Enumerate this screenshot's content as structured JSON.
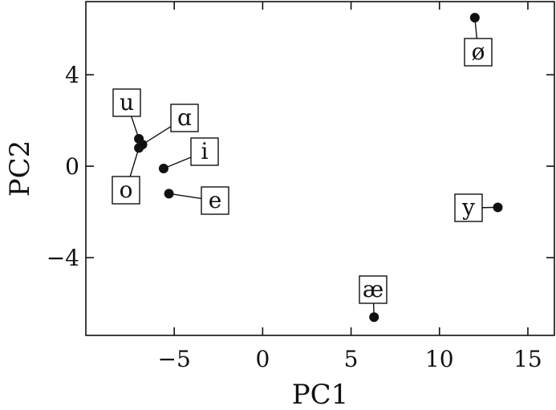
{
  "chart_data": {
    "type": "scatter",
    "title": "",
    "xlabel": "PC1",
    "ylabel": "PC2",
    "xlim": [
      -10,
      16.5
    ],
    "ylim": [
      -7.4,
      7.2
    ],
    "xticks": [
      -5,
      0,
      5,
      10,
      15
    ],
    "yticks": [
      -4,
      0,
      4
    ],
    "xtick_labels": [
      "−5",
      "0",
      "5",
      "10",
      "15"
    ],
    "ytick_labels": [
      "−4",
      "0",
      "4"
    ],
    "grid": false,
    "points": [
      {
        "label": "u",
        "x": -7.0,
        "y": 1.2
      },
      {
        "label": "ɑ",
        "x": -6.8,
        "y": 0.95
      },
      {
        "label": "o",
        "x": -7.0,
        "y": 0.8
      },
      {
        "label": "i",
        "x": -5.6,
        "y": -0.1
      },
      {
        "label": "e",
        "x": -5.3,
        "y": -1.2
      },
      {
        "label": "ø",
        "x": 12.0,
        "y": 6.5
      },
      {
        "label": "y",
        "x": 13.3,
        "y": -1.8
      },
      {
        "label": "æ",
        "x": 6.3,
        "y": -6.6
      }
    ]
  }
}
